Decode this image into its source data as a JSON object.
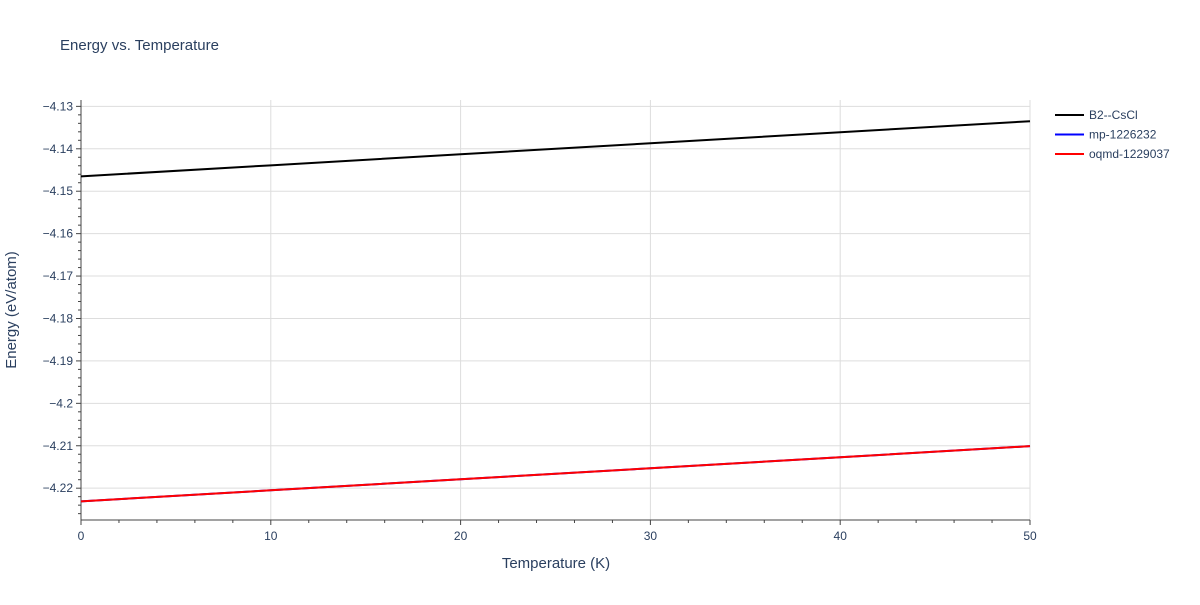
{
  "chart_data": {
    "type": "line",
    "title": "Energy vs. Temperature",
    "xlabel": "Temperature (K)",
    "ylabel": "Energy (eV/atom)",
    "xlim": [
      0,
      50
    ],
    "ylim": [
      -4.2275,
      -4.1285
    ],
    "x_ticks": [
      0,
      10,
      20,
      30,
      40,
      50
    ],
    "y_ticks": [
      -4.13,
      -4.14,
      -4.15,
      -4.16,
      -4.17,
      -4.18,
      -4.19,
      -4.2,
      -4.21,
      -4.22
    ],
    "x_tick_labels": [
      "0",
      "10",
      "20",
      "30",
      "40",
      "50"
    ],
    "y_tick_labels": [
      "−4.13",
      "−4.14",
      "−4.15",
      "−4.16",
      "−4.17",
      "−4.18",
      "−4.19",
      "−4.2",
      "−4.21",
      "−4.22"
    ],
    "grid": true,
    "legend_position": "top-right",
    "series": [
      {
        "name": "B2--CsCl",
        "color": "#000000",
        "x": [
          0,
          10,
          20,
          30,
          40,
          50
        ],
        "y": [
          -4.1465,
          -4.1439,
          -4.1413,
          -4.1387,
          -4.1361,
          -4.1335
        ]
      },
      {
        "name": "mp-1226232",
        "color": "#0000ff",
        "x": [
          0,
          10,
          20,
          30,
          40,
          50
        ],
        "y": [
          -4.2231,
          -4.2205,
          -4.2179,
          -4.2153,
          -4.2127,
          -4.2101
        ]
      },
      {
        "name": "oqmd-1229037",
        "color": "#ff0000",
        "x": [
          0,
          10,
          20,
          30,
          40,
          50
        ],
        "y": [
          -4.2231,
          -4.2205,
          -4.2179,
          -4.2153,
          -4.2127,
          -4.2101
        ]
      }
    ]
  }
}
